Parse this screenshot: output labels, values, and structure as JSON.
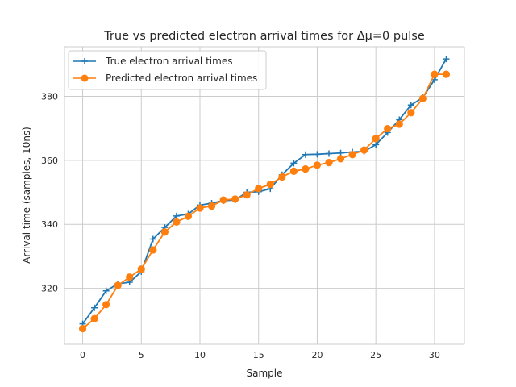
{
  "chart_data": {
    "type": "line",
    "title": "True vs predicted electron arrival times for Δμ=0 pulse",
    "xlabel": "Sample",
    "ylabel": "Arrival time (samples, 10ns)",
    "xlim": [
      -1.55,
      32.55
    ],
    "ylim": [
      302.5,
      395.5
    ],
    "xticks": [
      0,
      5,
      10,
      15,
      20,
      25,
      30
    ],
    "yticks": [
      320,
      340,
      360,
      380
    ],
    "grid": true,
    "legend_position": "top-left",
    "x": [
      0,
      1,
      2,
      3,
      4,
      5,
      6,
      7,
      8,
      9,
      10,
      11,
      12,
      13,
      14,
      15,
      16,
      17,
      18,
      19,
      20,
      21,
      22,
      23,
      24,
      25,
      26,
      27,
      28,
      29,
      30,
      31
    ],
    "series": [
      {
        "name": "True electron arrival times",
        "color": "#1f77b4",
        "marker": "plus",
        "values": [
          308.9,
          313.9,
          319.2,
          321.4,
          321.9,
          325.2,
          335.4,
          339.0,
          342.6,
          343.2,
          346.0,
          346.6,
          347.4,
          347.6,
          350.0,
          350.2,
          351.1,
          355.5,
          359.1,
          361.8,
          361.9,
          362.1,
          362.3,
          362.6,
          362.8,
          364.9,
          368.7,
          372.7,
          377.3,
          379.6,
          385.2,
          391.7
        ]
      },
      {
        "name": "Predicted electron arrival times",
        "color": "#ff7f0e",
        "marker": "circle",
        "values": [
          307.4,
          310.5,
          314.9,
          320.9,
          323.5,
          326.0,
          332.0,
          337.6,
          340.7,
          342.5,
          345.1,
          345.7,
          347.6,
          347.9,
          349.2,
          351.2,
          352.5,
          354.8,
          356.6,
          357.3,
          358.5,
          359.3,
          360.5,
          361.8,
          363.2,
          366.8,
          369.9,
          371.3,
          374.9,
          379.3,
          386.9,
          386.9
        ]
      }
    ]
  }
}
